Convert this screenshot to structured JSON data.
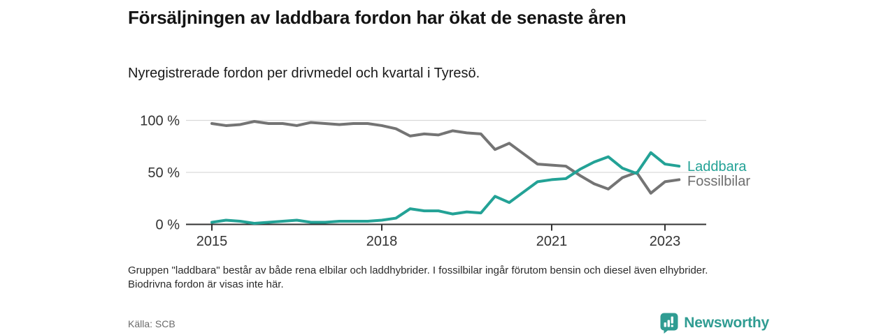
{
  "header": {
    "title": "Försäljningen av laddbara fordon har ökat de senaste åren",
    "subtitle": "Nyregistrerade fordon per drivmedel och kvartal i Tyresö."
  },
  "chart_data": {
    "type": "line",
    "x": [
      "2015 K1",
      "2015 K2",
      "2015 K3",
      "2015 K4",
      "2016 K1",
      "2016 K2",
      "2016 K3",
      "2016 K4",
      "2017 K1",
      "2017 K2",
      "2017 K3",
      "2017 K4",
      "2018 K1",
      "2018 K2",
      "2018 K3",
      "2018 K4",
      "2019 K1",
      "2019 K2",
      "2019 K3",
      "2019 K4",
      "2020 K1",
      "2020 K2",
      "2020 K3",
      "2020 K4",
      "2021 K1",
      "2021 K2",
      "2021 K3",
      "2021 K4",
      "2022 K1",
      "2022 K2",
      "2022 K3",
      "2022 K4",
      "2023 K1",
      "2023 K2"
    ],
    "series": [
      {
        "name": "Laddbara",
        "color": "#23a296",
        "values": [
          2,
          4,
          3,
          1,
          2,
          3,
          4,
          2,
          2,
          3,
          3,
          3,
          4,
          6,
          15,
          13,
          13,
          10,
          12,
          11,
          27,
          21,
          31,
          41,
          43,
          44,
          53,
          60,
          65,
          54,
          49,
          69,
          58,
          56
        ]
      },
      {
        "name": "Fossilbilar",
        "color": "#747474",
        "legend_color": "#6e6e6e",
        "values": [
          97,
          95,
          96,
          99,
          97,
          97,
          95,
          98,
          97,
          96,
          97,
          97,
          95,
          92,
          85,
          87,
          86,
          90,
          88,
          87,
          72,
          78,
          68,
          58,
          57,
          56,
          47,
          39,
          34,
          45,
          50,
          30,
          41,
          43
        ]
      }
    ],
    "y_ticks": [
      {
        "label": "0 %",
        "value": 0
      },
      {
        "label": "50 %",
        "value": 50
      },
      {
        "label": "100 %",
        "value": 100
      }
    ],
    "x_ticks": [
      {
        "label": "2015",
        "index": 0
      },
      {
        "label": "2018",
        "index": 12
      },
      {
        "label": "2021",
        "index": 24
      },
      {
        "label": "2023",
        "index": 32
      }
    ],
    "ylim": [
      0,
      100
    ],
    "grid": "horizontal",
    "legend_position": "right-of-line-end",
    "axis_color": "#333333",
    "grid_color": "#d9d9d9"
  },
  "footnote": "Gruppen \"laddbara\" består av både rena elbilar och laddhybrider. I fossilbilar ingår förutom bensin och diesel även elhybrider. Biodrivna fordon är visas inte här.",
  "footer": {
    "source": "Källa: SCB",
    "logo_text": "Newsworthy",
    "logo_color": "#2f9c92"
  }
}
